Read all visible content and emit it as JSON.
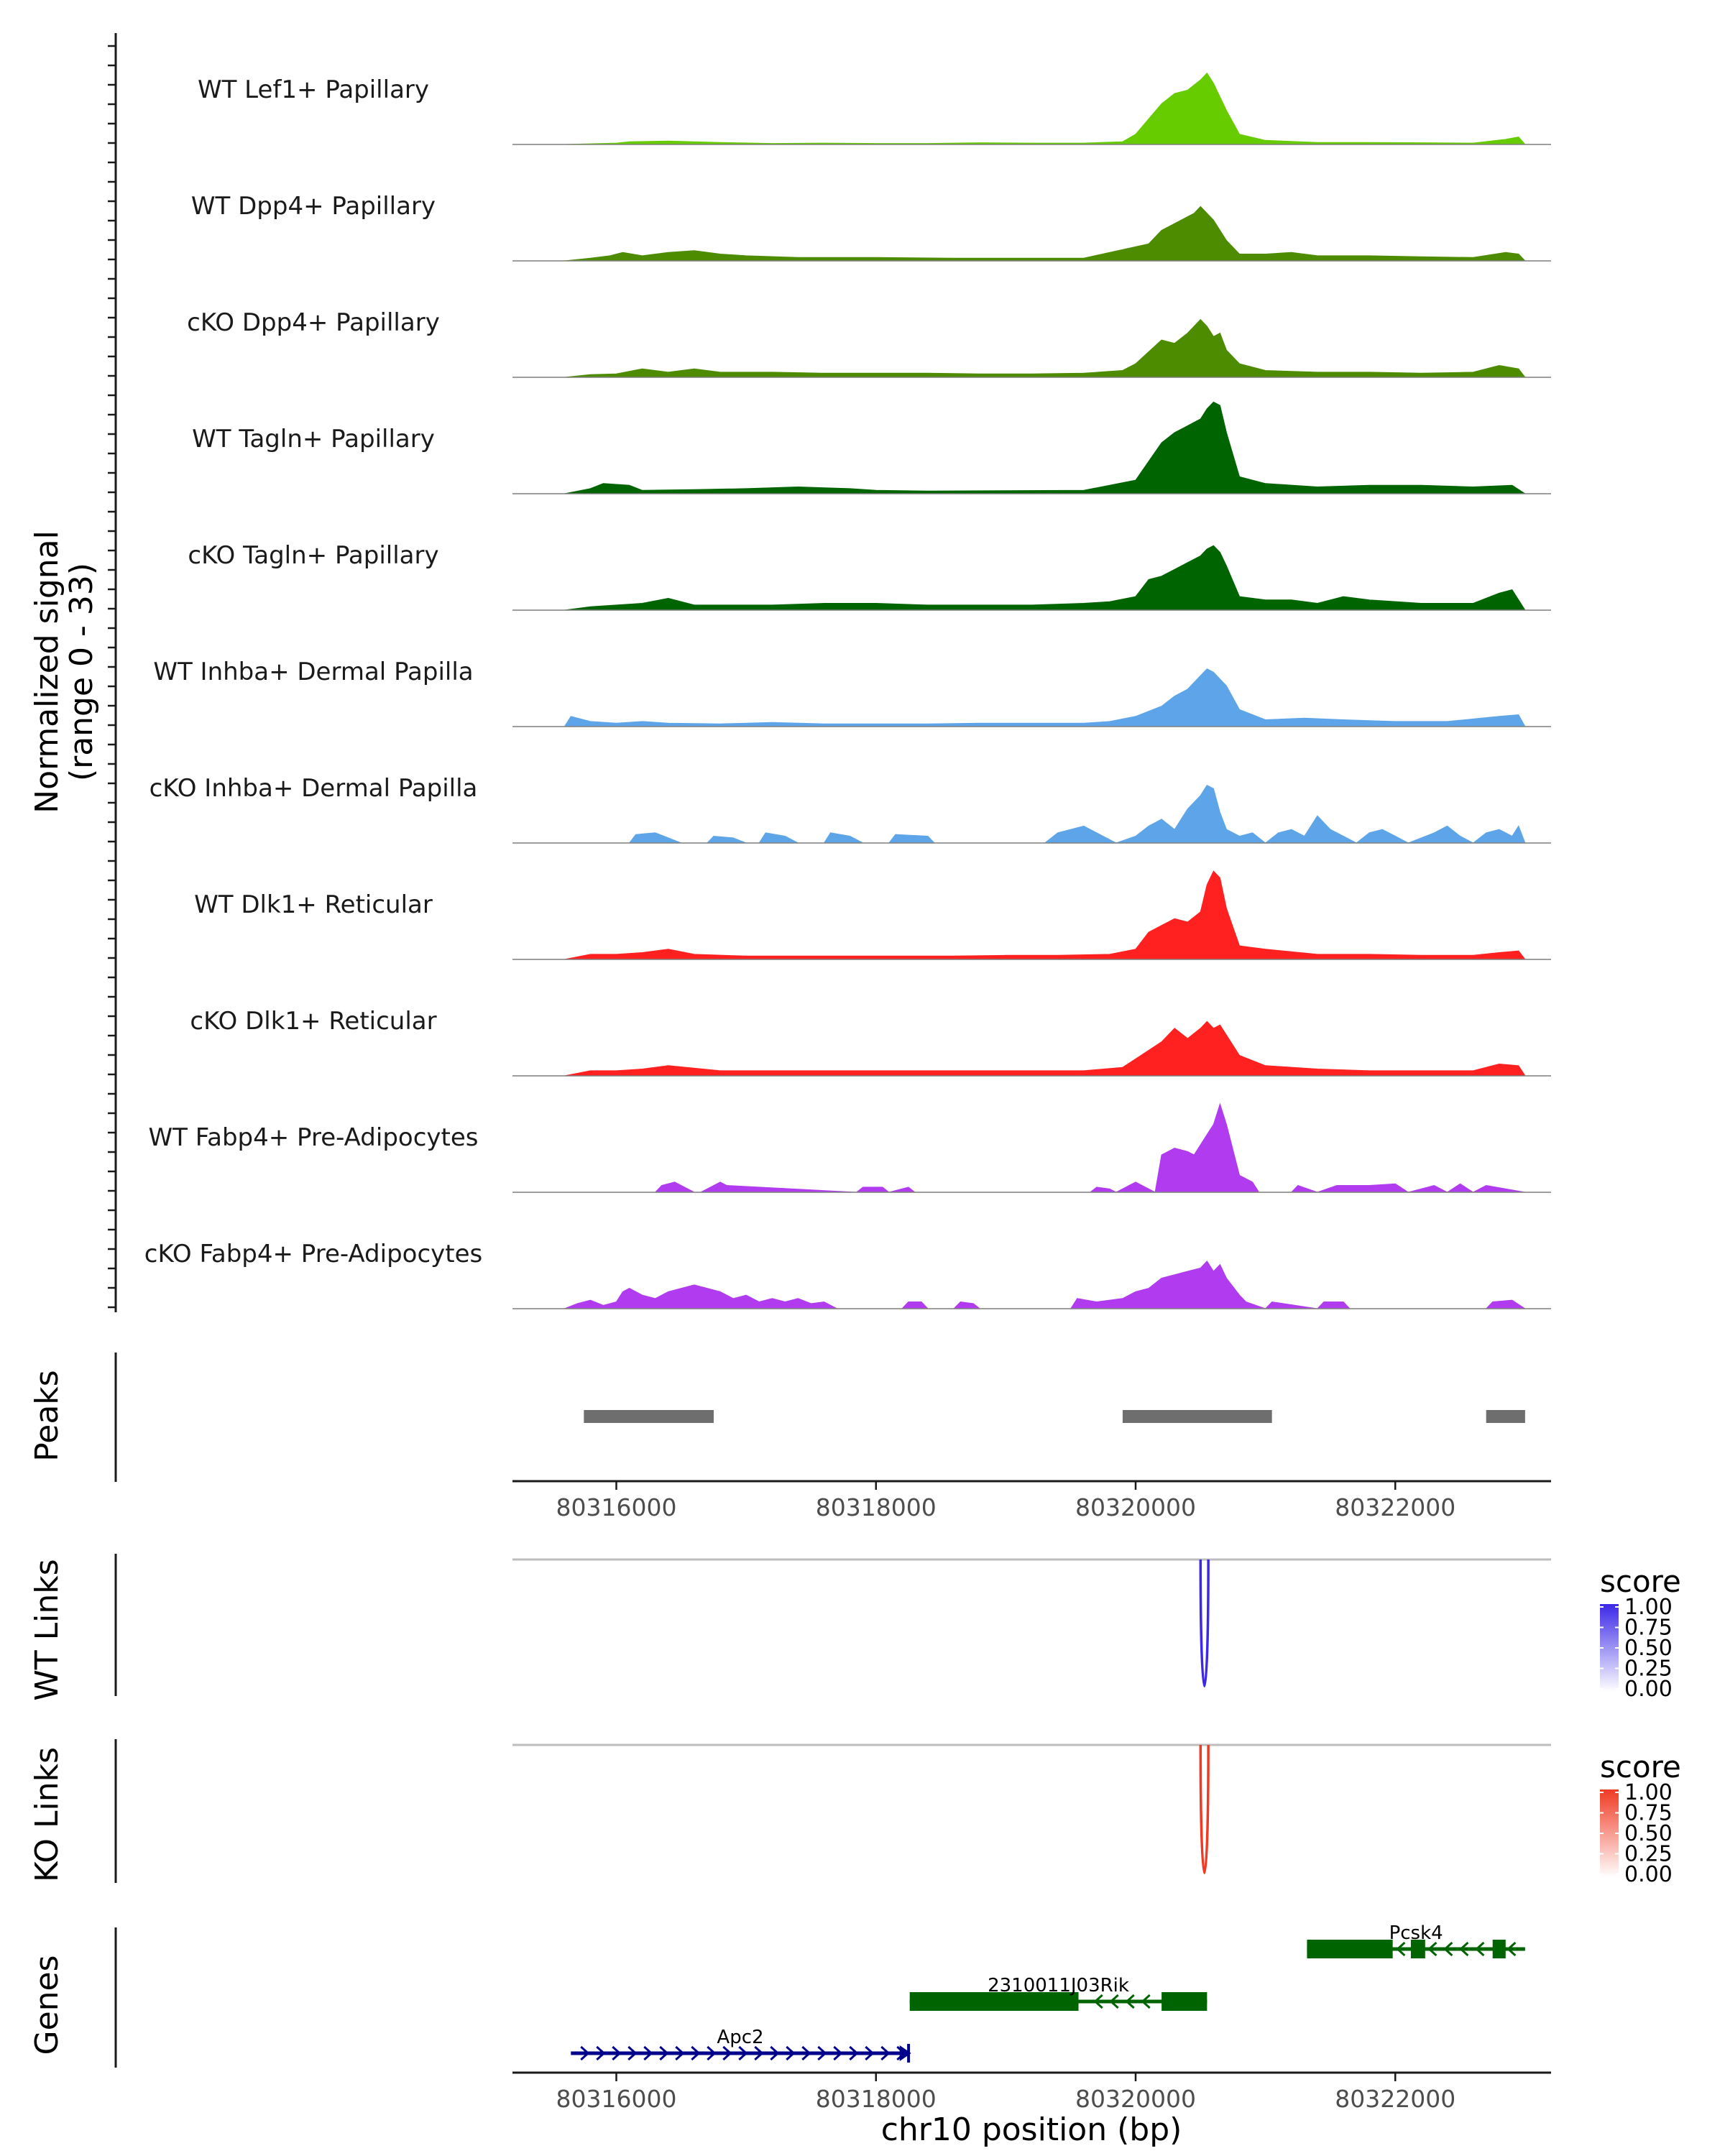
{
  "chart_data": {
    "type": "area",
    "title": "",
    "xlabel": "chr10 position (bp)",
    "ylabel": "Normalized signal",
    "ylabel_range": "(range 0 - 33)",
    "xlim": [
      80315200,
      80323200
    ],
    "ylim": [
      0,
      33
    ],
    "x_ticks": [
      80316000,
      80318000,
      80320000,
      80322000
    ],
    "x_tick_labels": [
      "80316000",
      "80318000",
      "80320000",
      "80322000"
    ],
    "coverage_tracks": [
      {
        "name": "WT Lef1+ Papillary",
        "color": "#66CC00",
        "x": [
          80315600,
          80316000,
          80316100,
          80316400,
          80316800,
          80317200,
          80317600,
          80318000,
          80318400,
          80318800,
          80319200,
          80319600,
          80319900,
          80320000,
          80320200,
          80320300,
          80320400,
          80320500,
          80320550,
          80320600,
          80320700,
          80320800,
          80321000,
          80321400,
          80321800,
          80322200,
          80322600,
          80322850,
          80322950,
          80323000
        ],
        "values": [
          0,
          0.4,
          0.8,
          1.0,
          0.6,
          0.3,
          0.4,
          0.3,
          0.3,
          0.5,
          0.4,
          0.4,
          0.8,
          3,
          12,
          15,
          16,
          19,
          21,
          18,
          10,
          3,
          1.2,
          0.6,
          0.6,
          0.5,
          0.4,
          1.5,
          2.2,
          0
        ]
      },
      {
        "name": "WT Dpp4+ Papillary",
        "color": "#4D8C00",
        "x": [
          80315600,
          80315800,
          80315950,
          80316050,
          80316200,
          80316400,
          80316600,
          80316800,
          80317000,
          80317400,
          80318000,
          80318600,
          80319000,
          80319600,
          80320100,
          80320200,
          80320350,
          80320450,
          80320500,
          80320600,
          80320700,
          80320800,
          80321000,
          80321200,
          80321400,
          80321800,
          80322200,
          80322600,
          80322850,
          80322950,
          80323000
        ],
        "values": [
          0,
          0.8,
          1.5,
          2.5,
          1.5,
          2.5,
          3.0,
          2.0,
          1.5,
          1.0,
          1.0,
          0.8,
          0.8,
          0.8,
          5,
          9,
          12,
          14,
          16,
          12,
          6,
          2,
          2,
          2.5,
          1.5,
          1.5,
          1.2,
          1.0,
          2.5,
          2.0,
          0
        ]
      },
      {
        "name": "cKO Dpp4+ Papillary",
        "color": "#4D8C00",
        "x": [
          80315600,
          80315800,
          80316000,
          80316200,
          80316400,
          80316600,
          80316800,
          80317200,
          80317600,
          80318000,
          80318400,
          80318800,
          80319200,
          80319600,
          80319900,
          80320000,
          80320200,
          80320300,
          80320400,
          80320500,
          80320550,
          80320600,
          80320650,
          80320700,
          80320800,
          80321000,
          80321400,
          80321800,
          80322200,
          80322600,
          80322800,
          80322950,
          80323000
        ],
        "values": [
          0,
          0.8,
          1.0,
          2.5,
          1.5,
          2.5,
          1.5,
          1.5,
          1.2,
          1.2,
          1.2,
          1.0,
          1.0,
          1.2,
          2.0,
          4,
          11,
          10,
          13,
          17,
          15,
          12,
          13,
          8,
          4,
          2,
          1.5,
          1.5,
          1.2,
          1.5,
          3.5,
          2.5,
          0
        ]
      },
      {
        "name": "WT Tagln+ Papillary",
        "color": "#006400",
        "x": [
          80315600,
          80315800,
          80315900,
          80316100,
          80316200,
          80316600,
          80317000,
          80317400,
          80317800,
          80318000,
          80318400,
          80319600,
          80319800,
          80320000,
          80320200,
          80320300,
          80320400,
          80320500,
          80320550,
          80320600,
          80320650,
          80320700,
          80320800,
          80321000,
          80321400,
          80321800,
          80322200,
          80322600,
          80322900,
          80323000
        ],
        "values": [
          0,
          1.5,
          3.0,
          2.5,
          1.0,
          1.2,
          1.5,
          2.0,
          1.5,
          1.0,
          0.8,
          1.0,
          2.5,
          4,
          15,
          18,
          20,
          22,
          25,
          27,
          26,
          18,
          5,
          3,
          2,
          2.5,
          2.5,
          2,
          2.5,
          0
        ]
      },
      {
        "name": "cKO Tagln+ Papillary",
        "color": "#006400",
        "x": [
          80315600,
          80315800,
          80316000,
          80316200,
          80316400,
          80316600,
          80316800,
          80317200,
          80317600,
          80318000,
          80318400,
          80318800,
          80319200,
          80319600,
          80319800,
          80320000,
          80320100,
          80320200,
          80320300,
          80320400,
          80320500,
          80320550,
          80320600,
          80320650,
          80320700,
          80320800,
          80321000,
          80321200,
          80321400,
          80321600,
          80321800,
          80322200,
          80322600,
          80322800,
          80322900,
          80323000
        ],
        "values": [
          0,
          1.0,
          1.5,
          2.0,
          3.5,
          1.5,
          1.5,
          1.5,
          2.0,
          2.0,
          1.5,
          1.5,
          1.5,
          2.0,
          2.5,
          4,
          9,
          10,
          12,
          14,
          16,
          18,
          19,
          17,
          13,
          4,
          3,
          3,
          2,
          4,
          3,
          2,
          2,
          5,
          6,
          0
        ]
      },
      {
        "name": "WT Inhba+ Dermal Papilla",
        "color": "#5DA5E8",
        "x": [
          80315600,
          80315650,
          80315800,
          80316000,
          80316200,
          80316400,
          80316800,
          80317200,
          80317600,
          80318000,
          80318400,
          80318800,
          80319200,
          80319600,
          80319800,
          80320000,
          80320200,
          80320300,
          80320400,
          80320500,
          80320550,
          80320600,
          80320700,
          80320800,
          80321000,
          80321300,
          80321600,
          80322000,
          80322400,
          80322800,
          80322950,
          80323000
        ],
        "values": [
          0,
          3.0,
          1.5,
          1.0,
          1.5,
          1.0,
          0.8,
          1.2,
          0.8,
          0.8,
          0.8,
          1.0,
          1.0,
          1.0,
          1.5,
          3,
          6,
          9,
          11,
          15,
          17,
          16,
          12,
          5,
          2,
          2.5,
          2,
          1.5,
          1.5,
          3,
          3.5,
          0
        ]
      },
      {
        "name": "cKO Inhba+ Dermal Papilla",
        "color": "#5DA5E8",
        "x": [
          80315600,
          80316100,
          80316150,
          80316300,
          80316400,
          80316500,
          80316700,
          80316750,
          80316900,
          80317000,
          80317100,
          80317150,
          80317300,
          80317400,
          80317600,
          80317650,
          80317800,
          80317900,
          80318100,
          80318150,
          80318400,
          80318450,
          80319300,
          80319400,
          80319500,
          80319600,
          80319700,
          80319800,
          80319850,
          80320000,
          80320100,
          80320200,
          80320300,
          80320400,
          80320500,
          80320550,
          80320600,
          80320650,
          80320700,
          80320800,
          80320900,
          80321000,
          80321100,
          80321200,
          80321300,
          80321400,
          80321500,
          80321600,
          80321700,
          80321800,
          80321900,
          80322000,
          80322100,
          80322300,
          80322400,
          80322500,
          80322600,
          80322700,
          80322800,
          80322900,
          80322950,
          80323000
        ],
        "values": [
          0,
          0,
          2.5,
          3.0,
          1.5,
          0,
          0,
          2.0,
          1.5,
          0,
          0,
          3.0,
          2.0,
          0,
          0,
          3.0,
          2.0,
          0,
          0,
          2.5,
          2.0,
          0,
          0,
          3.0,
          4.0,
          5.0,
          3.0,
          1.0,
          0,
          2.0,
          5,
          7,
          4,
          10,
          14,
          17,
          16,
          9,
          4,
          2,
          3,
          0,
          3,
          4,
          2,
          8,
          4,
          2,
          0,
          3,
          4,
          2,
          0,
          3,
          5,
          2,
          0,
          3,
          4,
          2,
          5,
          0
        ]
      },
      {
        "name": "WT Dlk1+ Reticular",
        "color": "#FF2020",
        "x": [
          80315600,
          80315800,
          80316000,
          80316200,
          80316400,
          80316600,
          80317000,
          80317400,
          80317800,
          80318200,
          80318600,
          80319000,
          80319400,
          80319800,
          80320000,
          80320100,
          80320200,
          80320300,
          80320400,
          80320500,
          80320550,
          80320600,
          80320650,
          80320700,
          80320800,
          80321000,
          80321400,
          80321800,
          80322200,
          80322600,
          80322800,
          80322950,
          80323000
        ],
        "values": [
          0,
          1.5,
          1.5,
          2.0,
          3.0,
          1.5,
          1.0,
          1.0,
          1.0,
          1.0,
          1.0,
          1.2,
          1.2,
          1.5,
          3,
          8,
          10,
          12,
          11,
          14,
          22,
          26,
          24,
          15,
          4,
          3,
          1.5,
          1.5,
          1.2,
          1.2,
          2.0,
          2.5,
          0
        ]
      },
      {
        "name": "cKO Dlk1+ Reticular",
        "color": "#FF2020",
        "x": [
          80315600,
          80315800,
          80316000,
          80316200,
          80316400,
          80316800,
          80317200,
          80317600,
          80318000,
          80318400,
          80318800,
          80319200,
          80319600,
          80319900,
          80320000,
          80320200,
          80320300,
          80320400,
          80320500,
          80320550,
          80320600,
          80320650,
          80320700,
          80320800,
          80321000,
          80321400,
          80321800,
          80322200,
          80322600,
          80322800,
          80322950,
          80323000
        ],
        "values": [
          0,
          1.5,
          1.5,
          2.0,
          3.0,
          1.5,
          1.5,
          1.5,
          1.5,
          1.5,
          1.5,
          1.5,
          1.5,
          2.5,
          5,
          10,
          14,
          11,
          14,
          16,
          14,
          15,
          12,
          6,
          3,
          2,
          1.5,
          1.5,
          1.5,
          3.5,
          3,
          0
        ]
      },
      {
        "name": "WT Fabp4+ Pre-Adipocytes",
        "color": "#B13BEE",
        "x": [
          80315600,
          80316300,
          80316350,
          80316450,
          80316600,
          80316650,
          80316800,
          80316850,
          80317850,
          80317900,
          80318050,
          80318100,
          80318250,
          80318300,
          80319650,
          80319700,
          80319800,
          80319850,
          80319950,
          80320000,
          80320150,
          80320200,
          80320300,
          80320400,
          80320450,
          80320550,
          80320600,
          80320650,
          80320700,
          80320800,
          80320900,
          80320950,
          80321200,
          80321250,
          80321400,
          80321550,
          80321800,
          80322000,
          80322100,
          80322300,
          80322400,
          80322500,
          80322600,
          80322700,
          80323000
        ],
        "values": [
          0,
          0,
          2,
          3,
          0,
          0,
          3,
          2,
          0,
          1.5,
          1.5,
          0,
          1.5,
          0,
          0,
          1.5,
          1,
          0,
          2,
          3,
          0,
          11,
          13,
          12,
          11,
          17,
          20,
          26,
          20,
          5,
          3,
          0,
          0,
          2,
          0,
          2,
          2,
          2.5,
          0,
          2,
          0,
          2.5,
          0,
          2,
          0
        ]
      },
      {
        "name": "cKO Fabp4+ Pre-Adipocytes",
        "color": "#B13BEE",
        "x": [
          80315600,
          80315700,
          80315800,
          80315900,
          80316000,
          80316050,
          80316100,
          80316200,
          80316300,
          80316400,
          80316500,
          80316600,
          80316700,
          80316800,
          80316900,
          80317000,
          80317100,
          80317200,
          80317300,
          80317400,
          80317500,
          80317600,
          80317700,
          80318200,
          80318250,
          80318350,
          80318400,
          80318600,
          80318650,
          80318750,
          80318800,
          80319500,
          80319550,
          80319700,
          80319900,
          80320000,
          80320100,
          80320200,
          80320300,
          80320400,
          80320500,
          80320550,
          80320600,
          80320650,
          80320700,
          80320800,
          80320850,
          80321000,
          80321050,
          80321400,
          80321450,
          80321600,
          80321650,
          80322700,
          80322750,
          80322900,
          80323000
        ],
        "values": [
          0,
          1.5,
          2.5,
          1,
          2,
          5,
          6,
          4,
          3,
          5,
          6,
          7,
          6,
          5,
          3,
          4,
          2,
          3,
          2,
          3,
          1.5,
          2,
          0,
          0,
          2,
          2,
          0,
          0,
          2,
          1.5,
          0,
          0,
          3,
          2,
          3,
          5,
          6,
          9,
          10,
          11,
          12,
          14,
          11,
          13,
          9,
          4,
          2,
          0,
          2,
          0,
          2,
          2,
          0,
          0,
          2,
          2.5,
          0
        ]
      }
    ],
    "peaks": {
      "label": "Peaks",
      "color": "#6E6E6E",
      "regions": [
        [
          80315750,
          80316750
        ],
        [
          80319900,
          80321050
        ],
        [
          80322700,
          80323000
        ]
      ]
    },
    "links": [
      {
        "label": "WT Links",
        "color_low": "#FFFFFF",
        "color_high": "#3C28E8",
        "arcs": [
          {
            "start": 80320500,
            "end": 80320560,
            "score": 1.0
          }
        ],
        "legend_title": "score",
        "legend_ticks": [
          "1.00",
          "0.75",
          "0.50",
          "0.25",
          "0.00"
        ]
      },
      {
        "label": "KO Links",
        "color_low": "#FFFFFF",
        "color_high": "#F03A23",
        "arcs": [
          {
            "start": 80320500,
            "end": 80320560,
            "score": 1.0
          }
        ],
        "legend_title": "score",
        "legend_ticks": [
          "1.00",
          "0.75",
          "0.50",
          "0.25",
          "0.00"
        ]
      }
    ],
    "genes": {
      "label": "Genes",
      "items": [
        {
          "name": "Pcsk4",
          "strand": "-",
          "color": "#006400",
          "row": 0,
          "start": 80321320,
          "end": 80323000,
          "exons": [
            [
              80321320,
              80321980
            ],
            [
              80322120,
              80322230
            ],
            [
              80322750,
              80322850
            ]
          ]
        },
        {
          "name": "2310011J03Rik",
          "strand": "-",
          "color": "#006400",
          "row": 1,
          "start": 80318260,
          "end": 80320550,
          "exons": [
            [
              80318260,
              80319560
            ],
            [
              80320200,
              80320550
            ]
          ]
        },
        {
          "name": "Apc2",
          "strand": "+",
          "color": "#00008B",
          "row": 2,
          "start": 80315650,
          "end": 80318260,
          "exons": [
            [
              80318240,
              80318260
            ]
          ]
        }
      ]
    }
  }
}
